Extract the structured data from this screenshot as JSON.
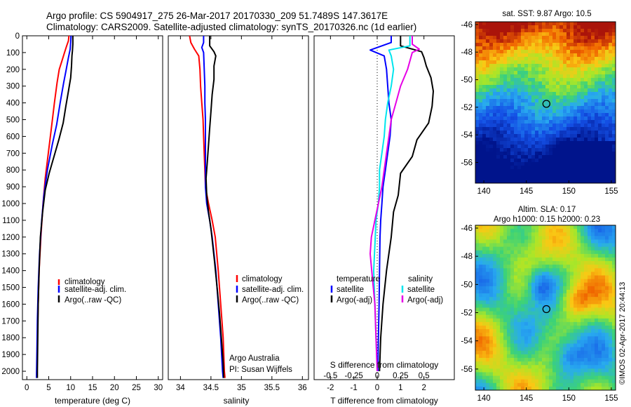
{
  "header": {
    "line1": "Argo profile: CS 5904917_275 26-Mar-2017 20170330_209 51.7489S 147.3617E",
    "line2": "Climatology: CARS2009. Satellite-adjusted climatology: synTS_20170326.nc (1d earlier)"
  },
  "colors": {
    "climatology": "#ff0000",
    "satellite": "#0000ff",
    "argo": "#000000",
    "sat_salinity": "#00e5ee",
    "argo_salinity": "#e600e6"
  },
  "chart_data": [
    {
      "id": "temperature",
      "type": "line",
      "xlabel": "temperature (deg C)",
      "xlim": [
        -1,
        31
      ],
      "ylim": [
        0,
        2050
      ],
      "y_reversed": true,
      "xticks": [
        0,
        5,
        10,
        15,
        20,
        25,
        30
      ],
      "yticks": [
        0,
        100,
        200,
        300,
        400,
        500,
        600,
        700,
        800,
        900,
        1000,
        1100,
        1200,
        1300,
        1400,
        1500,
        1600,
        1700,
        1800,
        1900,
        2000
      ],
      "legend": [
        "climatology",
        "satellite-adj. clim.",
        "Argo(..raw -QC)"
      ],
      "series": [
        {
          "name": "climatology",
          "color": "#ff0000",
          "points": [
            [
              9.6,
              0
            ],
            [
              9.5,
              30
            ],
            [
              9.1,
              60
            ],
            [
              8.6,
              100
            ],
            [
              8.0,
              150
            ],
            [
              7.4,
              200
            ],
            [
              6.9,
              280
            ],
            [
              6.3,
              400
            ],
            [
              5.6,
              550
            ],
            [
              4.9,
              700
            ],
            [
              4.2,
              850
            ],
            [
              3.7,
              1000
            ],
            [
              3.2,
              1200
            ],
            [
              2.8,
              1400
            ],
            [
              2.6,
              1600
            ],
            [
              2.4,
              1800
            ],
            [
              2.3,
              2000
            ]
          ]
        },
        {
          "name": "satellite-adj. clim.",
          "color": "#0000ff",
          "points": [
            [
              10.1,
              0
            ],
            [
              10.0,
              40
            ],
            [
              9.9,
              80
            ],
            [
              9.5,
              130
            ],
            [
              9.0,
              200
            ],
            [
              8.4,
              280
            ],
            [
              7.6,
              400
            ],
            [
              6.8,
              530
            ],
            [
              5.8,
              650
            ],
            [
              4.7,
              800
            ],
            [
              3.9,
              950
            ],
            [
              3.4,
              1100
            ],
            [
              2.9,
              1300
            ],
            [
              2.6,
              1500
            ],
            [
              2.4,
              1700
            ],
            [
              2.3,
              1900
            ],
            [
              2.2,
              2040
            ]
          ]
        },
        {
          "name": "Argo(..raw -QC)",
          "color": "#000000",
          "points": [
            [
              10.5,
              0
            ],
            [
              10.5,
              50
            ],
            [
              10.4,
              90
            ],
            [
              10.3,
              120
            ],
            [
              10.2,
              180
            ],
            [
              10.0,
              250
            ],
            [
              9.5,
              330
            ],
            [
              8.9,
              420
            ],
            [
              8.3,
              520
            ],
            [
              7.3,
              620
            ],
            [
              6.2,
              720
            ],
            [
              5.1,
              820
            ],
            [
              4.2,
              920
            ],
            [
              3.6,
              1050
            ],
            [
              3.1,
              1200
            ],
            [
              2.8,
              1400
            ],
            [
              2.6,
              1600
            ],
            [
              2.5,
              1800
            ],
            [
              2.4,
              2000
            ],
            [
              2.4,
              2040
            ]
          ]
        }
      ]
    },
    {
      "id": "salinity",
      "type": "line",
      "xlabel": "salinity",
      "xlim": [
        33.8,
        36.1
      ],
      "ylim": [
        0,
        2050
      ],
      "y_reversed": true,
      "xticks": [
        34,
        34.5,
        35,
        35.5,
        36
      ],
      "legend": [
        "climatology",
        "satellite-adj. clim.",
        "Argo(..raw -QC)"
      ],
      "series": [
        {
          "name": "climatology",
          "color": "#ff0000",
          "points": [
            [
              34.15,
              0
            ],
            [
              34.17,
              40
            ],
            [
              34.23,
              80
            ],
            [
              34.3,
              120
            ],
            [
              34.32,
              200
            ],
            [
              34.33,
              300
            ],
            [
              34.35,
              400
            ],
            [
              34.37,
              500
            ],
            [
              34.38,
              600
            ],
            [
              34.39,
              700
            ],
            [
              34.4,
              800
            ],
            [
              34.41,
              900
            ],
            [
              34.46,
              1000
            ],
            [
              34.52,
              1100
            ],
            [
              34.57,
              1200
            ],
            [
              34.62,
              1400
            ],
            [
              34.66,
              1600
            ],
            [
              34.7,
              1800
            ],
            [
              34.72,
              2000
            ],
            [
              34.73,
              2040
            ]
          ]
        },
        {
          "name": "satellite-adj. clim.",
          "color": "#0000ff",
          "points": [
            [
              34.38,
              0
            ],
            [
              34.38,
              40
            ],
            [
              34.35,
              70
            ],
            [
              34.38,
              100
            ],
            [
              34.39,
              200
            ],
            [
              34.4,
              300
            ],
            [
              34.4,
              400
            ],
            [
              34.41,
              500
            ],
            [
              34.41,
              600
            ],
            [
              34.41,
              700
            ],
            [
              34.41,
              800
            ],
            [
              34.41,
              900
            ],
            [
              34.43,
              1000
            ],
            [
              34.48,
              1100
            ],
            [
              34.52,
              1200
            ],
            [
              34.58,
              1400
            ],
            [
              34.62,
              1600
            ],
            [
              34.66,
              1800
            ],
            [
              34.69,
              2000
            ],
            [
              34.7,
              2040
            ]
          ]
        },
        {
          "name": "Argo(..raw -QC)",
          "color": "#000000",
          "points": [
            [
              34.48,
              0
            ],
            [
              34.48,
              60
            ],
            [
              34.55,
              95
            ],
            [
              34.58,
              120
            ],
            [
              34.55,
              180
            ],
            [
              34.55,
              260
            ],
            [
              34.52,
              350
            ],
            [
              34.5,
              450
            ],
            [
              34.48,
              550
            ],
            [
              34.46,
              650
            ],
            [
              34.44,
              750
            ],
            [
              34.42,
              850
            ],
            [
              34.43,
              950
            ],
            [
              34.46,
              1050
            ],
            [
              34.5,
              1150
            ],
            [
              34.53,
              1250
            ],
            [
              34.56,
              1350
            ],
            [
              34.6,
              1500
            ],
            [
              34.64,
              1650
            ],
            [
              34.67,
              1800
            ],
            [
              34.7,
              1950
            ],
            [
              34.71,
              2040
            ]
          ]
        }
      ]
    },
    {
      "id": "difference",
      "type": "line",
      "xlabel": "T difference from climatology",
      "x2label": "S difference from climatology",
      "xlim": [
        -2.7,
        3.3
      ],
      "ylim": [
        0,
        2050
      ],
      "y_reversed": true,
      "xticks": [
        -2,
        -1,
        0,
        1,
        2
      ],
      "x2ticks_labels": [
        "-0.5",
        "-0.25",
        "0",
        "0.25",
        "0.5"
      ],
      "x2ticks_pos": [
        -2,
        -1,
        0,
        1,
        2
      ],
      "zero_line": "dotted",
      "legend_groups": [
        "temperature",
        "salinity"
      ],
      "legend": [
        "satellite",
        "Argo(-adj)",
        "satellite",
        "Argo(-adj)"
      ],
      "series": [
        {
          "name": "satellite",
          "group": "temperature",
          "color": "#0000ff",
          "points": [
            [
              0.6,
              0
            ],
            [
              0.6,
              40
            ],
            [
              -0.3,
              85
            ],
            [
              0.3,
              120
            ],
            [
              0.4,
              200
            ],
            [
              0.45,
              300
            ],
            [
              0.5,
              400
            ],
            [
              0.6,
              500
            ],
            [
              0.55,
              600
            ],
            [
              0.45,
              700
            ],
            [
              0.35,
              800
            ],
            [
              0.25,
              900
            ],
            [
              0.2,
              1000
            ],
            [
              0.15,
              1100
            ],
            [
              0.12,
              1200
            ],
            [
              0.1,
              1400
            ],
            [
              0.08,
              1600
            ],
            [
              0.05,
              1800
            ],
            [
              0.03,
              2000
            ]
          ]
        },
        {
          "name": "Argo(-adj)",
          "group": "temperature",
          "color": "#000000",
          "points": [
            [
              1.0,
              0
            ],
            [
              1.0,
              60
            ],
            [
              1.9,
              95
            ],
            [
              2.0,
              130
            ],
            [
              2.1,
              180
            ],
            [
              2.3,
              250
            ],
            [
              2.4,
              330
            ],
            [
              2.35,
              420
            ],
            [
              2.2,
              520
            ],
            [
              1.7,
              620
            ],
            [
              1.5,
              720
            ],
            [
              1.0,
              820
            ],
            [
              0.9,
              950
            ],
            [
              0.7,
              1050
            ],
            [
              0.6,
              1200
            ],
            [
              0.4,
              1400
            ],
            [
              0.25,
              1600
            ],
            [
              0.15,
              1800
            ],
            [
              0.1,
              2000
            ]
          ]
        },
        {
          "name": "satellite",
          "group": "salinity",
          "color": "#00e5ee",
          "points": [
            [
              1.4,
              0
            ],
            [
              1.4,
              60
            ],
            [
              0.5,
              85
            ],
            [
              0.6,
              120
            ],
            [
              0.7,
              200
            ],
            [
              0.6,
              300
            ],
            [
              0.45,
              400
            ],
            [
              0.35,
              500
            ],
            [
              0.3,
              600
            ],
            [
              0.2,
              700
            ],
            [
              0.1,
              800
            ],
            [
              0.1,
              900
            ],
            [
              0.05,
              1000
            ],
            [
              -0.05,
              1100
            ],
            [
              -0.1,
              1250
            ],
            [
              -0.15,
              1400
            ],
            [
              -0.1,
              1600
            ],
            [
              -0.05,
              1800
            ],
            [
              0.0,
              2000
            ]
          ]
        },
        {
          "name": "Argo(-adj)",
          "group": "salinity",
          "color": "#e600e6",
          "points": [
            [
              1.5,
              0
            ],
            [
              1.5,
              50
            ],
            [
              1.8,
              80
            ],
            [
              1.5,
              100
            ],
            [
              1.3,
              200
            ],
            [
              1.0,
              300
            ],
            [
              0.8,
              400
            ],
            [
              0.6,
              500
            ],
            [
              0.5,
              600
            ],
            [
              0.4,
              700
            ],
            [
              0.3,
              800
            ],
            [
              0.2,
              900
            ],
            [
              0.05,
              1000
            ],
            [
              -0.1,
              1100
            ],
            [
              -0.25,
              1200
            ],
            [
              -0.3,
              1300
            ],
            [
              -0.2,
              1450
            ],
            [
              -0.1,
              1600
            ],
            [
              -0.05,
              1800
            ],
            [
              0.0,
              2000
            ]
          ]
        }
      ]
    },
    {
      "id": "sst_map",
      "type": "heatmap",
      "title": "sat. SST: 9.87 Argo: 10.5",
      "xlim": [
        139,
        155.5
      ],
      "ylim": [
        -57.5,
        -45.8
      ],
      "xticks": [
        140,
        145,
        150,
        155
      ],
      "yticks": [
        -46,
        -48,
        -50,
        -52,
        -54,
        -56
      ],
      "marker": {
        "lon": 147.36,
        "lat": -51.75
      }
    },
    {
      "id": "sla_map",
      "type": "heatmap",
      "title": "Altim. SLA: 0.17",
      "subtitle": "Argo h1000: 0.15 h2000: 0.23",
      "xlim": [
        139,
        155.5
      ],
      "ylim": [
        -57.5,
        -45.8
      ],
      "xticks": [
        140,
        145,
        150,
        155
      ],
      "yticks": [
        -46,
        -48,
        -50,
        -52,
        -54,
        -56
      ],
      "marker": {
        "lon": 147.36,
        "lat": -51.75
      }
    }
  ],
  "credit": "Argo Australia",
  "pi": "PI: Susan Wijffels",
  "imos": "©IMOS 02-Apr-2017 20:44:13"
}
